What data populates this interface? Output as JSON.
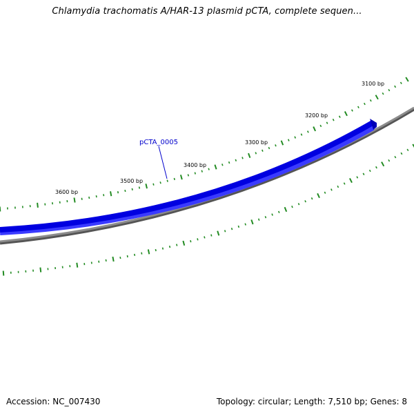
{
  "title": "Chlamydia trachomatis A/HAR-13 plasmid pCTA, complete sequen...",
  "footer": {
    "accession": "Accession: NC_007430",
    "summary": "Topology: circular; Length: 7,510 bp; Genes: 8"
  },
  "colors": {
    "gene": "#0a0ae6",
    "gene_dark": "#0000a8",
    "backbone": "#7a7a7a",
    "ticks": "#228b22",
    "label": "#0000cc"
  },
  "ruler_labels": [
    "3100 bp",
    "3200 bp",
    "3300 bp",
    "3400 bp",
    "3500 bp",
    "3600 bp"
  ],
  "genes": [
    {
      "name": "pCTA_0005",
      "strand": "+"
    }
  ]
}
